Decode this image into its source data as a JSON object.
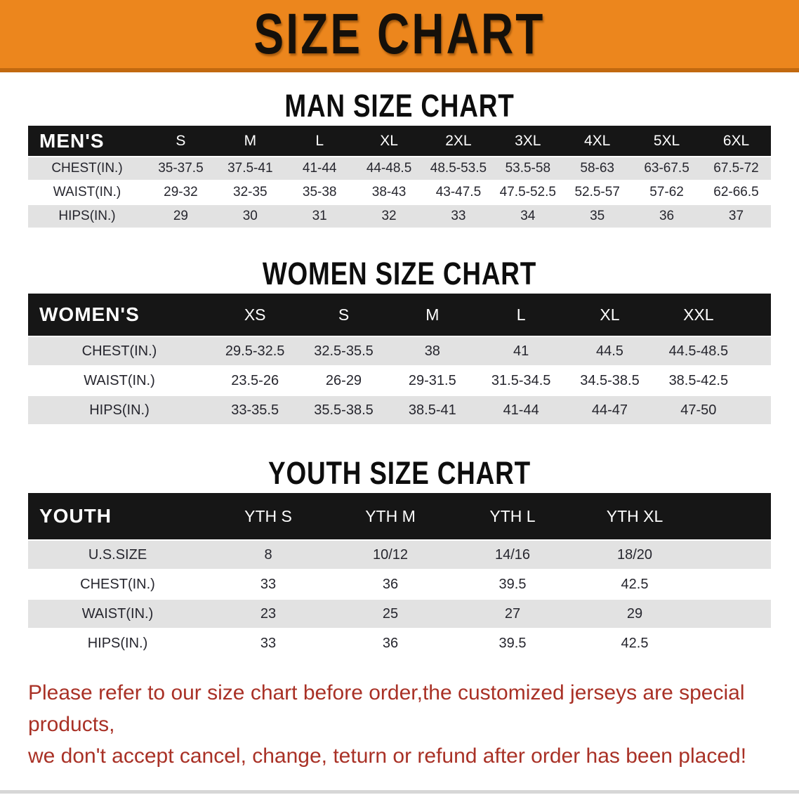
{
  "banner": {
    "title": "SIZE CHART"
  },
  "colors": {
    "banner_orange": "#EC861D",
    "banner_orange_dark": "#C2690F",
    "table_header_black": "#161616",
    "row_stripe_gray": "#E2E2E2",
    "footnote_red": "#A93126"
  },
  "sections": [
    {
      "heading": "MAN SIZE CHART",
      "table": {
        "group_label": "MEN'S",
        "columns": [
          "S",
          "M",
          "L",
          "XL",
          "2XL",
          "3XL",
          "4XL",
          "5XL",
          "6XL"
        ],
        "rows": [
          {
            "label": "CHEST(IN.)",
            "values": [
              "35-37.5",
              "37.5-41",
              "41-44",
              "44-48.5",
              "48.5-53.5",
              "53.5-58",
              "58-63",
              "63-67.5",
              "67.5-72"
            ]
          },
          {
            "label": "WAIST(IN.)",
            "values": [
              "29-32",
              "32-35",
              "35-38",
              "38-43",
              "43-47.5",
              "47.5-52.5",
              "52.5-57",
              "57-62",
              "62-66.5"
            ]
          },
          {
            "label": "HIPS(IN.)",
            "values": [
              "29",
              "30",
              "31",
              "32",
              "33",
              "34",
              "35",
              "36",
              "37"
            ]
          }
        ]
      }
    },
    {
      "heading": "WOMEN SIZE CHART",
      "table": {
        "group_label": "WOMEN'S",
        "columns": [
          "XS",
          "S",
          "M",
          "L",
          "XL",
          "XXL"
        ],
        "rows": [
          {
            "label": "CHEST(IN.)",
            "values": [
              "29.5-32.5",
              "32.5-35.5",
              "38",
              "41",
              "44.5",
              "44.5-48.5"
            ]
          },
          {
            "label": "WAIST(IN.)",
            "values": [
              "23.5-26",
              "26-29",
              "29-31.5",
              "31.5-34.5",
              "34.5-38.5",
              "38.5-42.5"
            ]
          },
          {
            "label": "HIPS(IN.)",
            "values": [
              "33-35.5",
              "35.5-38.5",
              "38.5-41",
              "41-44",
              "44-47",
              "47-50"
            ]
          }
        ]
      }
    },
    {
      "heading": "YOUTH SIZE CHART",
      "table": {
        "group_label": "YOUTH",
        "columns": [
          "YTH S",
          "YTH M",
          "YTH L",
          "YTH XL"
        ],
        "rows": [
          {
            "label": "U.S.SIZE",
            "values": [
              "8",
              "10/12",
              "14/16",
              "18/20"
            ]
          },
          {
            "label": "CHEST(IN.)",
            "values": [
              "33",
              "36",
              "39.5",
              "42.5"
            ]
          },
          {
            "label": "WAIST(IN.)",
            "values": [
              "23",
              "25",
              "27",
              "29"
            ]
          },
          {
            "label": "HIPS(IN.)",
            "values": [
              "33",
              "36",
              "39.5",
              "42.5"
            ]
          }
        ]
      }
    }
  ],
  "footnote": {
    "line1": "Please refer to our size chart before order,the customized jerseys are special products,",
    "line2": "we don't accept cancel, change, teturn or refund after order has been placed!"
  }
}
